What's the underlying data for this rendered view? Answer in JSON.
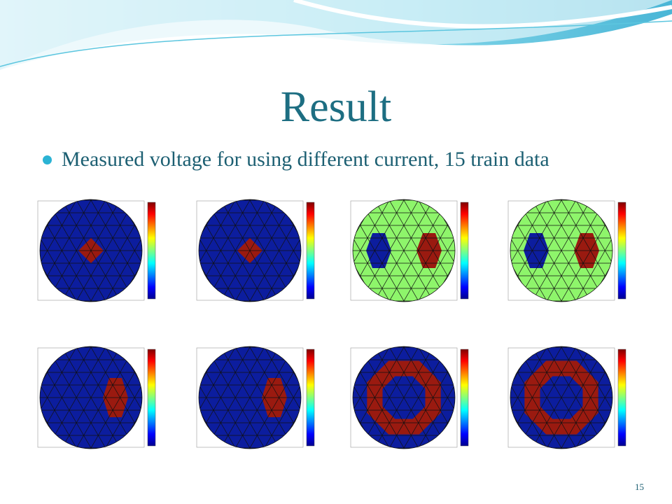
{
  "slide": {
    "title": "Result",
    "bullet": "Measured voltage for using different current, 15 train data",
    "page_number": "15"
  }
}
